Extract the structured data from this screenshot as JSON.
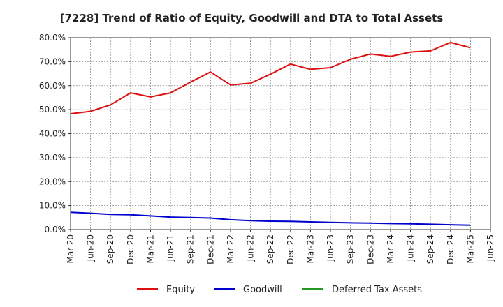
{
  "chart_data": {
    "type": "line",
    "title": "[7228]  Trend of Ratio of Equity, Goodwill and DTA to Total Assets",
    "xlabel": "",
    "ylabel": "",
    "ylim": [
      0,
      80
    ],
    "yticks": [
      "0.0%",
      "10.0%",
      "20.0%",
      "30.0%",
      "40.0%",
      "50.0%",
      "60.0%",
      "70.0%",
      "80.0%"
    ],
    "categories": [
      "Mar-20",
      "Jun-20",
      "Sep-20",
      "Dec-20",
      "Mar-21",
      "Jun-21",
      "Sep-21",
      "Dec-21",
      "Mar-22",
      "Jun-22",
      "Sep-22",
      "Dec-22",
      "Mar-23",
      "Jun-23",
      "Sep-23",
      "Dec-23",
      "Mar-24",
      "Jun-24",
      "Sep-24",
      "Dec-24",
      "Mar-25",
      "Jun-25"
    ],
    "grid": true,
    "legend_position": "bottom",
    "series": [
      {
        "name": "Equity",
        "color": "#dd1111",
        "values": [
          48.3,
          49.3,
          52.0,
          57.0,
          55.3,
          57.0,
          61.5,
          65.7,
          60.3,
          61.0,
          64.8,
          69.0,
          66.8,
          67.5,
          71.0,
          73.2,
          72.2,
          74.0,
          74.5,
          78.0,
          75.8,
          null
        ]
      },
      {
        "name": "Goodwill",
        "color": "#0000cc",
        "values": [
          7.2,
          6.8,
          6.3,
          6.2,
          5.7,
          5.2,
          5.0,
          4.8,
          4.1,
          3.7,
          3.5,
          3.4,
          3.2,
          3.0,
          2.8,
          2.7,
          2.5,
          2.4,
          2.2,
          2.0,
          1.8,
          null
        ]
      },
      {
        "name": "Deferred Tax Assets",
        "color": "#229922",
        "values": [
          null,
          null,
          null,
          null,
          null,
          null,
          null,
          null,
          null,
          null,
          null,
          null,
          null,
          null,
          null,
          null,
          null,
          null,
          null,
          null,
          null,
          null
        ]
      }
    ]
  }
}
